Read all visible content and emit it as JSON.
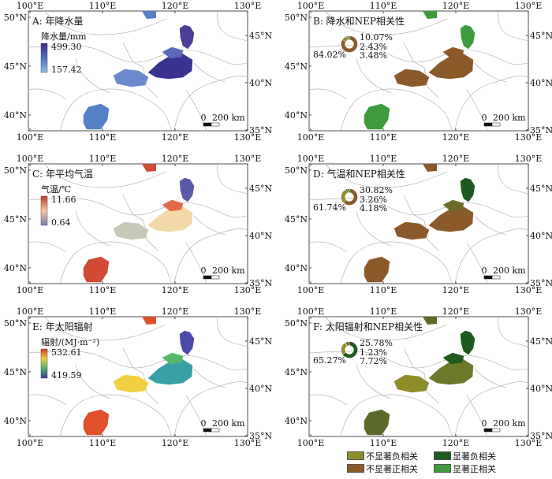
{
  "figure_legend": {
    "items": [
      {
        "label": "不显著负相关",
        "color": "#8f8d2a"
      },
      {
        "label": "不显著正相关",
        "color": "#8b5a2b"
      },
      {
        "label": "显著负相关",
        "color": "#1f5a1f"
      },
      {
        "label": "显著正相关",
        "color": "#3d9a3d"
      }
    ]
  },
  "panels": [
    {
      "id": "A",
      "title": "A: 年降水量",
      "kind": "gradient",
      "legend_title": "降水量/mm",
      "legend_max": "499.30",
      "legend_min": "157.42",
      "gradient_colors": [
        "#3a2a8a",
        "#4f6fc0",
        "#8ac0e0"
      ],
      "top_ticks": [
        "100°E",
        "110°E",
        "120°E",
        "130°E"
      ],
      "bottom_ticks": [
        "100°E",
        "110°E",
        "120°E",
        "130°E"
      ],
      "left_ticks": [
        "50°N",
        "45°N",
        "40°N"
      ],
      "right_ticks": [
        "45°N",
        "40°N",
        "35°N"
      ],
      "scalebar": {
        "zero": "0",
        "label": "200 km"
      },
      "region_colors": [
        "#4a3e96",
        "#3a3390",
        "#5a6ab8",
        "#6a8acc",
        "#5580c6"
      ]
    },
    {
      "id": "B",
      "title": "B: 降水和NEP相关性",
      "kind": "correlation",
      "donut": {
        "values": [
          84.02,
          10.07,
          2.43,
          3.48
        ],
        "labels": [
          "84.02%",
          "10.07%",
          "2.43%",
          "3.48%"
        ],
        "colors": [
          "#8b5a2b",
          "#8f8d2a",
          "#1f5a1f",
          "#3d9a3d"
        ]
      },
      "top_ticks": [
        "100°E",
        "110°E",
        "120°E",
        "130°E"
      ],
      "bottom_ticks": [
        "100°E",
        "110°E",
        "120°E",
        "130°E"
      ],
      "left_ticks": [
        "50°N",
        "45°N",
        "40°N"
      ],
      "right_ticks": [
        "45°N",
        "40°N",
        "35°N"
      ],
      "scalebar": {
        "zero": "0",
        "label": "200 km"
      },
      "region_colors": [
        "#3d9a3d",
        "#8b5a2b",
        "#8b5a2b",
        "#8b5a2b",
        "#3d9a3d"
      ]
    },
    {
      "id": "C",
      "title": "C: 年平均气温",
      "kind": "gradient",
      "legend_title": "气温/℃",
      "legend_max": "11.66",
      "legend_min": "0.64",
      "gradient_colors": [
        "#c0392b",
        "#f5c8a0",
        "#7a7ab8"
      ],
      "top_ticks": [
        "100°E",
        "110°E",
        "120°E",
        "130°E"
      ],
      "bottom_ticks": [
        "100°E",
        "110°E",
        "120°E",
        "130°E"
      ],
      "left_ticks": [
        "50°N",
        "45°N",
        "40°N"
      ],
      "right_ticks": [
        "45°N",
        "40°N",
        "35°N"
      ],
      "scalebar": {
        "zero": "0",
        "label": "200 km"
      },
      "region_colors": [
        "#5a5aa8",
        "#f2d9a8",
        "#e06a4a",
        "#c8c8b8",
        "#d04a35"
      ]
    },
    {
      "id": "D",
      "title": "D: 气温和NEP相关性",
      "kind": "correlation",
      "donut": {
        "values": [
          61.74,
          30.82,
          3.26,
          4.18
        ],
        "labels": [
          "61.74%",
          "30.82%",
          "3.26%",
          "4.18%"
        ],
        "colors": [
          "#8b5a2b",
          "#8f8d2a",
          "#1f5a1f",
          "#3d9a3d"
        ]
      },
      "top_ticks": [
        "100°E",
        "110°E",
        "120°E",
        "130°E"
      ],
      "bottom_ticks": [
        "100°E",
        "110°E",
        "120°E",
        "130°E"
      ],
      "left_ticks": [
        "50°N",
        "45°N",
        "40°N"
      ],
      "right_ticks": [
        "45°N",
        "40°N",
        "35°N"
      ],
      "scalebar": {
        "zero": "0",
        "label": "200 km"
      },
      "region_colors": [
        "#1f5a1f",
        "#8b5a2b",
        "#6a6a2a",
        "#8b5a2b",
        "#8b5a2b"
      ]
    },
    {
      "id": "E",
      "title": "E: 年太阳辐射",
      "kind": "gradient",
      "legend_title": "辐射/(MJ·m⁻²)",
      "legend_max": "532.61",
      "legend_min": "419.59",
      "gradient_colors": [
        "#d63a1f",
        "#f0d040",
        "#50b070",
        "#3a3a9a"
      ],
      "top_ticks": [
        "100°E",
        "110°E",
        "120°E",
        "130°E"
      ],
      "bottom_ticks": [
        "100°E",
        "110°E",
        "120°E",
        "130°E"
      ],
      "left_ticks": [
        "50°N",
        "45°N",
        "40°N"
      ],
      "right_ticks": [
        "45°N",
        "40°N",
        "35°N"
      ],
      "scalebar": {
        "zero": "0",
        "label": "200 km"
      },
      "region_colors": [
        "#4a4aa8",
        "#3aa0a8",
        "#58b86a",
        "#f0d040",
        "#e0502a"
      ]
    },
    {
      "id": "F",
      "title": "F: 太阳辐射和NEP相关性",
      "kind": "correlation",
      "donut": {
        "values": [
          65.27,
          25.78,
          1.23,
          7.72
        ],
        "labels": [
          "65.27%",
          "25.78%",
          "1.23%",
          "7.72%"
        ],
        "colors": [
          "#1f5a1f",
          "#8f8d2a",
          "#3d9a3d",
          "#8b5a2b"
        ]
      },
      "top_ticks": [
        "100°E",
        "110°E",
        "120°E",
        "130°E"
      ],
      "bottom_ticks": [
        "100°E",
        "110°E",
        "120°E",
        "130°E"
      ],
      "left_ticks": [
        "50°N",
        "45°N",
        "40°N"
      ],
      "right_ticks": [
        "45°N",
        "40°N",
        "35°N"
      ],
      "scalebar": {
        "zero": "0",
        "label": "200 km"
      },
      "region_colors": [
        "#1f5a1f",
        "#6a7a2a",
        "#1f5a1f",
        "#8f8d2a",
        "#5a6a2a"
      ]
    }
  ]
}
